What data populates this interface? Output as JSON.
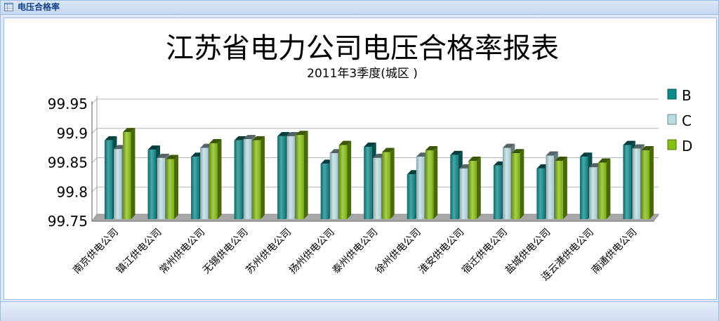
{
  "window": {
    "title": "电压合格率",
    "icon": "grid-icon"
  },
  "colors": {
    "B": "#0e8a8a",
    "C": "#b9dde2",
    "D": "#86c012",
    "frame": "#99bbe8",
    "titlebar_text": "#15428b"
  },
  "chart_data": {
    "type": "bar",
    "title": "江苏省电力公司电压合格率报表",
    "subtitle": "2011年3季度(城区 )",
    "xlabel": "",
    "ylabel": "",
    "ylim": [
      99.75,
      99.95
    ],
    "yticks": [
      "99.75",
      "99.8",
      "99.85",
      "99.9",
      "99.95"
    ],
    "grid": true,
    "legend_position": "right",
    "categories": [
      "南京供电公司",
      "镇江供电公司",
      "常州供电公司",
      "无锡供电公司",
      "苏州供电公司",
      "扬州供电公司",
      "泰州供电公司",
      "徐州供电公司",
      "淮安供电公司",
      "宿迁供电公司",
      "盐城供电公司",
      "连云港供电公司",
      "南通供电公司"
    ],
    "series": [
      {
        "name": "B",
        "values": [
          99.888,
          99.872,
          99.86,
          99.888,
          99.895,
          99.848,
          99.877,
          99.83,
          99.863,
          99.845,
          99.84,
          99.86,
          99.88
        ]
      },
      {
        "name": "C",
        "values": [
          99.873,
          99.858,
          99.875,
          99.89,
          99.895,
          99.866,
          99.858,
          99.86,
          99.84,
          99.875,
          99.862,
          99.842,
          99.874
        ]
      },
      {
        "name": "D",
        "values": [
          99.902,
          99.856,
          99.883,
          99.888,
          99.897,
          99.88,
          99.868,
          99.871,
          99.853,
          99.866,
          99.853,
          99.85,
          99.871
        ]
      }
    ]
  }
}
